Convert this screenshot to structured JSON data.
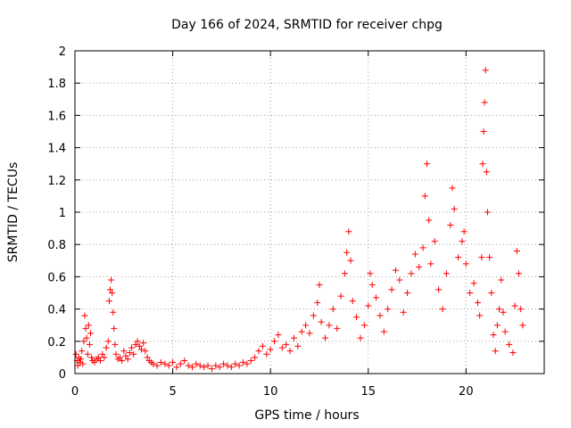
{
  "chart_data": {
    "type": "scatter",
    "title": "Day 166 of 2024, SRMTID for receiver chpg",
    "xlabel": "GPS time / hours",
    "ylabel": "SRMTID / TECUs",
    "xlim": [
      0,
      24
    ],
    "ylim": [
      0,
      2
    ],
    "xticks": [
      0,
      5,
      10,
      15,
      20
    ],
    "xtick_labels": [
      "0",
      "5",
      "10",
      "15",
      "20"
    ],
    "yticks": [
      0,
      0.2,
      0.4,
      0.6,
      0.8,
      1,
      1.2,
      1.4,
      1.6,
      1.8,
      2
    ],
    "ytick_labels": [
      "0",
      "0.2",
      "0.4",
      "0.6",
      "0.8",
      "1",
      "1.2",
      "1.4",
      "1.6",
      "1.8",
      "2"
    ],
    "grid": true,
    "marker": "+",
    "series": [
      {
        "name": "chpg",
        "color": "#ff0000",
        "points": [
          [
            0.05,
            0.12
          ],
          [
            0.1,
            0.08
          ],
          [
            0.15,
            0.05
          ],
          [
            0.2,
            0.1
          ],
          [
            0.25,
            0.07
          ],
          [
            0.3,
            0.09
          ],
          [
            0.35,
            0.14
          ],
          [
            0.4,
            0.06
          ],
          [
            0.45,
            0.2
          ],
          [
            0.5,
            0.36
          ],
          [
            0.55,
            0.28
          ],
          [
            0.6,
            0.22
          ],
          [
            0.65,
            0.12
          ],
          [
            0.7,
            0.3
          ],
          [
            0.75,
            0.18
          ],
          [
            0.8,
            0.25
          ],
          [
            0.85,
            0.1
          ],
          [
            0.9,
            0.08
          ],
          [
            1.0,
            0.07
          ],
          [
            1.1,
            0.09
          ],
          [
            1.2,
            0.1
          ],
          [
            1.3,
            0.08
          ],
          [
            1.4,
            0.12
          ],
          [
            1.5,
            0.1
          ],
          [
            1.6,
            0.16
          ],
          [
            1.7,
            0.2
          ],
          [
            1.75,
            0.45
          ],
          [
            1.8,
            0.52
          ],
          [
            1.85,
            0.58
          ],
          [
            1.9,
            0.5
          ],
          [
            1.95,
            0.38
          ],
          [
            2.0,
            0.28
          ],
          [
            2.05,
            0.18
          ],
          [
            2.1,
            0.12
          ],
          [
            2.2,
            0.09
          ],
          [
            2.3,
            0.1
          ],
          [
            2.4,
            0.08
          ],
          [
            2.5,
            0.14
          ],
          [
            2.6,
            0.11
          ],
          [
            2.7,
            0.09
          ],
          [
            2.8,
            0.13
          ],
          [
            2.9,
            0.16
          ],
          [
            3.0,
            0.12
          ],
          [
            3.1,
            0.18
          ],
          [
            3.2,
            0.2
          ],
          [
            3.3,
            0.17
          ],
          [
            3.4,
            0.15
          ],
          [
            3.5,
            0.19
          ],
          [
            3.6,
            0.14
          ],
          [
            3.7,
            0.1
          ],
          [
            3.8,
            0.08
          ],
          [
            3.9,
            0.07
          ],
          [
            4.0,
            0.06
          ],
          [
            4.2,
            0.05
          ],
          [
            4.4,
            0.07
          ],
          [
            4.6,
            0.06
          ],
          [
            4.8,
            0.05
          ],
          [
            5.0,
            0.07
          ],
          [
            5.2,
            0.04
          ],
          [
            5.4,
            0.06
          ],
          [
            5.6,
            0.08
          ],
          [
            5.8,
            0.05
          ],
          [
            6.0,
            0.04
          ],
          [
            6.2,
            0.06
          ],
          [
            6.4,
            0.05
          ],
          [
            6.6,
            0.04
          ],
          [
            6.8,
            0.05
          ],
          [
            7.0,
            0.03
          ],
          [
            7.2,
            0.05
          ],
          [
            7.4,
            0.04
          ],
          [
            7.6,
            0.06
          ],
          [
            7.8,
            0.05
          ],
          [
            8.0,
            0.04
          ],
          [
            8.2,
            0.06
          ],
          [
            8.4,
            0.05
          ],
          [
            8.6,
            0.07
          ],
          [
            8.8,
            0.06
          ],
          [
            9.0,
            0.08
          ],
          [
            9.2,
            0.1
          ],
          [
            9.4,
            0.14
          ],
          [
            9.6,
            0.17
          ],
          [
            9.8,
            0.12
          ],
          [
            10.0,
            0.15
          ],
          [
            10.2,
            0.2
          ],
          [
            10.4,
            0.24
          ],
          [
            10.6,
            0.16
          ],
          [
            10.8,
            0.18
          ],
          [
            11.0,
            0.14
          ],
          [
            11.2,
            0.22
          ],
          [
            11.4,
            0.17
          ],
          [
            11.6,
            0.26
          ],
          [
            11.8,
            0.3
          ],
          [
            12.0,
            0.25
          ],
          [
            12.2,
            0.36
          ],
          [
            12.4,
            0.44
          ],
          [
            12.5,
            0.55
          ],
          [
            12.6,
            0.32
          ],
          [
            12.8,
            0.22
          ],
          [
            13.0,
            0.3
          ],
          [
            13.2,
            0.4
          ],
          [
            13.4,
            0.28
          ],
          [
            13.6,
            0.48
          ],
          [
            13.8,
            0.62
          ],
          [
            13.9,
            0.75
          ],
          [
            14.0,
            0.88
          ],
          [
            14.1,
            0.7
          ],
          [
            14.2,
            0.45
          ],
          [
            14.4,
            0.35
          ],
          [
            14.6,
            0.22
          ],
          [
            14.8,
            0.3
          ],
          [
            15.0,
            0.42
          ],
          [
            15.1,
            0.62
          ],
          [
            15.2,
            0.55
          ],
          [
            15.4,
            0.47
          ],
          [
            15.6,
            0.36
          ],
          [
            15.8,
            0.26
          ],
          [
            16.0,
            0.4
          ],
          [
            16.2,
            0.52
          ],
          [
            16.4,
            0.64
          ],
          [
            16.6,
            0.58
          ],
          [
            16.8,
            0.38
          ],
          [
            17.0,
            0.5
          ],
          [
            17.2,
            0.62
          ],
          [
            17.4,
            0.74
          ],
          [
            17.6,
            0.66
          ],
          [
            17.8,
            0.78
          ],
          [
            17.9,
            1.1
          ],
          [
            18.0,
            1.3
          ],
          [
            18.1,
            0.95
          ],
          [
            18.2,
            0.68
          ],
          [
            18.4,
            0.82
          ],
          [
            18.6,
            0.52
          ],
          [
            18.8,
            0.4
          ],
          [
            19.0,
            0.62
          ],
          [
            19.2,
            0.92
          ],
          [
            19.3,
            1.15
          ],
          [
            19.4,
            1.02
          ],
          [
            19.6,
            0.72
          ],
          [
            19.8,
            0.82
          ],
          [
            19.9,
            0.88
          ],
          [
            20.0,
            0.68
          ],
          [
            20.2,
            0.5
          ],
          [
            20.4,
            0.56
          ],
          [
            20.6,
            0.44
          ],
          [
            20.7,
            0.36
          ],
          [
            20.8,
            0.72
          ],
          [
            20.85,
            1.3
          ],
          [
            20.9,
            1.5
          ],
          [
            20.95,
            1.68
          ],
          [
            21.0,
            1.88
          ],
          [
            21.05,
            1.25
          ],
          [
            21.1,
            1.0
          ],
          [
            21.2,
            0.72
          ],
          [
            21.3,
            0.5
          ],
          [
            21.4,
            0.24
          ],
          [
            21.5,
            0.14
          ],
          [
            21.6,
            0.3
          ],
          [
            21.7,
            0.4
          ],
          [
            21.8,
            0.58
          ],
          [
            21.9,
            0.38
          ],
          [
            22.0,
            0.26
          ],
          [
            22.2,
            0.18
          ],
          [
            22.4,
            0.13
          ],
          [
            22.5,
            0.42
          ],
          [
            22.6,
            0.76
          ],
          [
            22.7,
            0.62
          ],
          [
            22.8,
            0.4
          ],
          [
            22.9,
            0.3
          ]
        ]
      }
    ]
  }
}
